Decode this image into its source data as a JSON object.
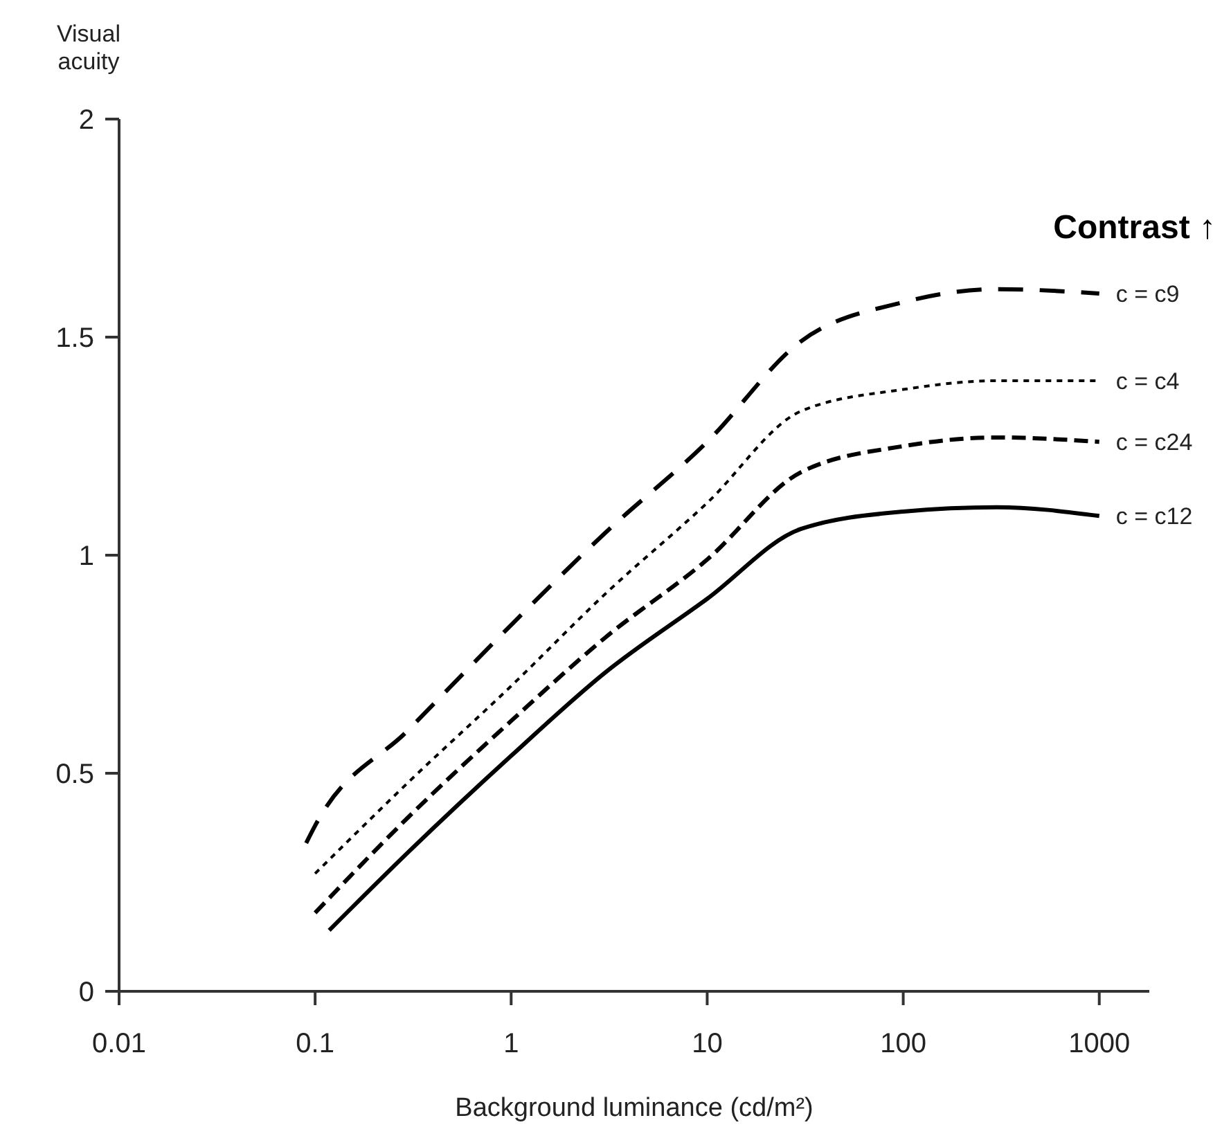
{
  "chart_data": {
    "type": "line",
    "ylabel": "Visual acuity",
    "xlabel": "Background luminance (cd/m²)",
    "legend_title": "Contrast ↑",
    "log": "x",
    "xlim": [
      0.01,
      1800
    ],
    "xticks": [
      0.01,
      0.1,
      1,
      10,
      100,
      1000
    ],
    "ylim": [
      0,
      2
    ],
    "yticks": [
      0,
      0.5,
      1,
      1.5,
      2
    ],
    "series": [
      {
        "name": "c = c9",
        "color": "#000000",
        "line_style": "longdash",
        "x": [
          0.09,
          0.1,
          0.3,
          1,
          3,
          10,
          30,
          100,
          300,
          1000
        ],
        "values": [
          0.34,
          0.38,
          0.6,
          0.84,
          1.05,
          1.26,
          1.49,
          1.58,
          1.61,
          1.6
        ]
      },
      {
        "name": "c = c4",
        "color": "#000000",
        "line_style": "dotted",
        "x": [
          0.1,
          0.3,
          1,
          3,
          10,
          30,
          100,
          300,
          1000
        ],
        "values": [
          0.27,
          0.48,
          0.7,
          0.91,
          1.12,
          1.33,
          1.38,
          1.4,
          1.4
        ]
      },
      {
        "name": "c = c24",
        "color": "#000000",
        "line_style": "dashed",
        "x": [
          0.1,
          0.3,
          1,
          3,
          10,
          30,
          100,
          300,
          1000
        ],
        "values": [
          0.18,
          0.4,
          0.62,
          0.81,
          0.99,
          1.19,
          1.25,
          1.27,
          1.26
        ]
      },
      {
        "name": "c = c12",
        "color": "#000000",
        "line_style": "solid",
        "x": [
          0.118,
          0.3,
          1,
          3,
          10,
          30,
          100,
          300,
          1000
        ],
        "values": [
          0.14,
          0.32,
          0.54,
          0.73,
          0.9,
          1.06,
          1.1,
          1.11,
          1.09
        ]
      }
    ]
  }
}
